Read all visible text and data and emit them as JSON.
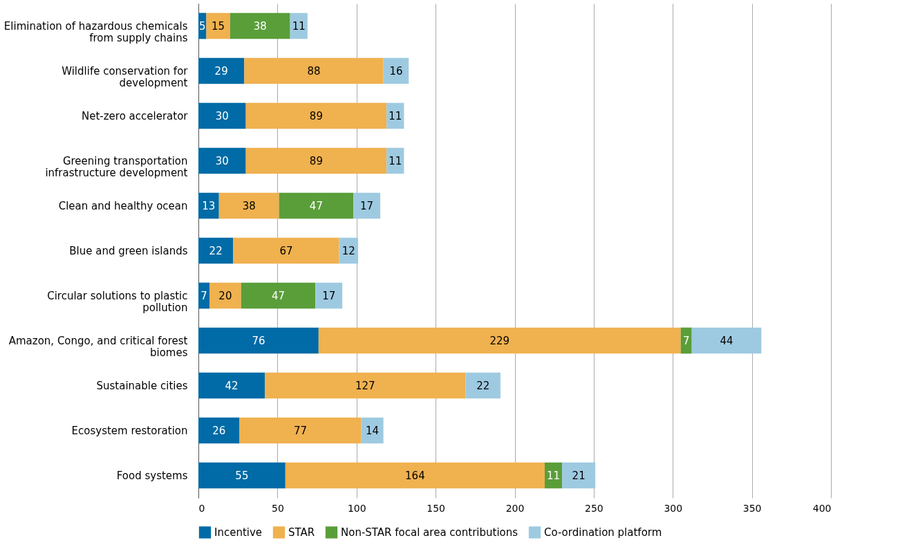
{
  "chart_data": {
    "type": "bar",
    "orientation": "horizontal",
    "stacked": true,
    "data_labels": true,
    "grid": "x",
    "legend": "bottom",
    "categories": [
      "Elimination of hazardous chemicals from supply chains",
      "Wildlife conservation for development",
      "Net-zero accelerator",
      "Greening transportation infrastructure development",
      "Clean and healthy ocean",
      "Blue and green islands",
      "Circular solutions to plastic pollution",
      "Amazon, Congo, and critical forest biomes",
      "Sustainable cities",
      "Ecosystem restoration",
      "Food systems"
    ],
    "series": [
      {
        "name": "Incentive",
        "color": "#006ba6",
        "values": [
          5,
          29,
          30,
          30,
          13,
          22,
          7,
          76,
          42,
          26,
          55
        ]
      },
      {
        "name": "STAR",
        "color": "#f0b14f",
        "values": [
          15,
          88,
          89,
          89,
          38,
          67,
          20,
          229,
          127,
          77,
          164
        ]
      },
      {
        "name": "Non-STAR focal area contributions",
        "color": "#5a9e3a",
        "values": [
          38,
          null,
          null,
          null,
          47,
          null,
          47,
          7,
          null,
          null,
          11
        ]
      },
      {
        "name": "Co-ordination platform",
        "color": "#9ecae1",
        "values": [
          11,
          16,
          11,
          11,
          17,
          12,
          17,
          44,
          22,
          14,
          21
        ]
      }
    ],
    "xlim": [
      0,
      400
    ],
    "xticks": [
      0,
      50,
      100,
      150,
      200,
      250,
      300,
      350,
      400
    ]
  }
}
